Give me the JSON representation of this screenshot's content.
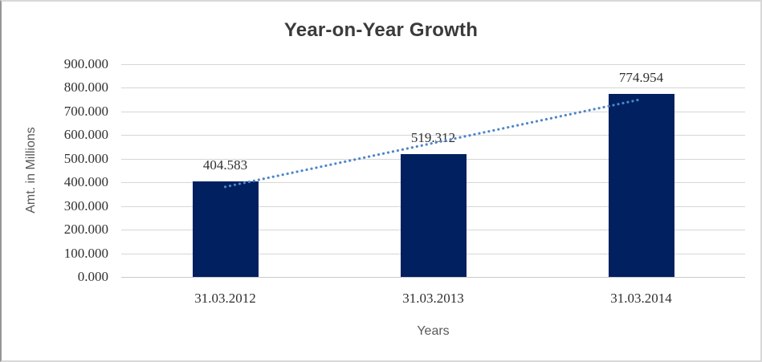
{
  "chart_data": {
    "type": "bar",
    "title": "Year-on-Year Growth",
    "xlabel": "Years",
    "ylabel": "Amt. in Millions",
    "categories": [
      "31.03.2012",
      "31.03.2013",
      "31.03.2014"
    ],
    "values": [
      404.583,
      519.312,
      774.954
    ],
    "value_labels": [
      "404.583",
      "519.312",
      "774.954"
    ],
    "series_name": "Amt. in Millions",
    "ylim": [
      0,
      900
    ],
    "y_tick_step": 100,
    "y_tick_labels": [
      "0.000",
      "100.000",
      "200.000",
      "300.000",
      "400.000",
      "500.000",
      "600.000",
      "700.000",
      "800.000",
      "900.000"
    ],
    "grid": "horizontal",
    "legend": "none",
    "trendline": {
      "type": "linear",
      "style": "dotted",
      "color": "#4e86c8",
      "endpoint_values": [
        381.1,
        751.5
      ]
    },
    "colors": {
      "bar": "#002060",
      "gridline": "#d6d6d6",
      "title_text": "#3a3a3a",
      "tick_text": "#303030",
      "axis_title_text": "#595959"
    }
  }
}
